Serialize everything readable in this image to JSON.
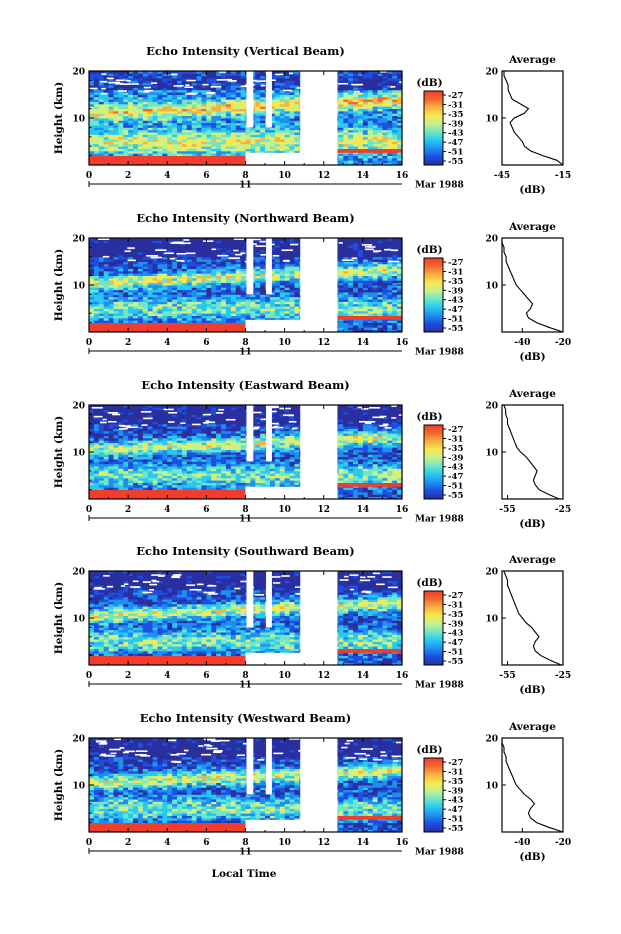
{
  "figure": {
    "xlabel": "Local Time",
    "day_label": "11",
    "month_label": "Mar 1988",
    "colorbar_unit": "(dB)",
    "colors": {
      "gradient": [
        "#2a2f9e",
        "#1c4fe0",
        "#1e8ef0",
        "#28c8f0",
        "#6fe6c8",
        "#c8f08c",
        "#f6e850",
        "#f8b040",
        "#f06a30",
        "#f23c2c"
      ],
      "low_echo": "#2a2f9e",
      "strong_echo": "#f23c2c"
    }
  },
  "chart_data": [
    {
      "type": "heatmap",
      "title": "Echo Intensity (Vertical Beam)",
      "ylabel": "Height (km)",
      "xlim": [
        0,
        16
      ],
      "ylim": [
        0,
        20
      ],
      "xticks": [
        "0",
        "2",
        "4",
        "6",
        "8",
        "10",
        "12",
        "14",
        "16"
      ],
      "yticks": [
        "10",
        "20"
      ],
      "colorbar_ticks": [
        "-27",
        "-31",
        "-35",
        "-39",
        "-43",
        "-47",
        "-51",
        "-55"
      ],
      "no_data_intervals_hours": [
        [
          12.3,
          12.6
        ],
        [
          8.2,
          8.5
        ]
      ],
      "avg_profile": {
        "title": "Average",
        "xlabel": "(dB)",
        "xticks": [
          "-45",
          "-15"
        ],
        "xlim": [
          -45,
          -15
        ],
        "yticks": [
          "10",
          "20"
        ],
        "height_km": [
          0,
          1,
          2,
          3,
          4,
          5,
          6,
          7,
          8,
          9,
          10,
          11,
          12,
          13,
          14,
          15,
          16,
          17,
          18,
          19,
          20
        ],
        "db": [
          -15,
          -18,
          -25,
          -31,
          -34,
          -35,
          -37,
          -39,
          -40,
          -41,
          -39,
          -34,
          -32,
          -36,
          -40,
          -41,
          -42,
          -42,
          -43,
          -44,
          -44
        ]
      }
    },
    {
      "type": "heatmap",
      "title": "Echo Intensity (Northward Beam)",
      "ylabel": "Height (km)",
      "xlim": [
        0,
        16
      ],
      "ylim": [
        0,
        20
      ],
      "xticks": [
        "0",
        "2",
        "4",
        "6",
        "8",
        "10",
        "12",
        "14",
        "16"
      ],
      "yticks": [
        "10",
        "20"
      ],
      "colorbar_ticks": [
        "-27",
        "-31",
        "-35",
        "-39",
        "-43",
        "-47",
        "-51",
        "-55"
      ],
      "avg_profile": {
        "title": "Average",
        "xlabel": "(dB)",
        "xticks": [
          "-40",
          "-20"
        ],
        "xlim": [
          -50,
          -20
        ],
        "yticks": [
          "10",
          "20"
        ],
        "height_km": [
          0,
          1,
          2,
          3,
          4,
          5,
          6,
          7,
          8,
          9,
          10,
          11,
          12,
          13,
          14,
          15,
          16,
          17,
          18,
          19,
          20
        ],
        "db": [
          -20,
          -27,
          -33,
          -37,
          -38,
          -36,
          -35,
          -37,
          -39,
          -41,
          -43,
          -44,
          -45,
          -46,
          -47,
          -48,
          -48,
          -49,
          -49,
          -50,
          -50
        ]
      }
    },
    {
      "type": "heatmap",
      "title": "Echo Intensity (Eastward Beam)",
      "ylabel": "Height (km)",
      "xlim": [
        0,
        16
      ],
      "ylim": [
        0,
        20
      ],
      "xticks": [
        "0",
        "2",
        "4",
        "6",
        "8",
        "10",
        "12",
        "14",
        "16"
      ],
      "yticks": [
        "10",
        "20"
      ],
      "colorbar_ticks": [
        "-27",
        "-31",
        "-35",
        "-39",
        "-43",
        "-47",
        "-51",
        "-55"
      ],
      "avg_profile": {
        "title": "Average",
        "xlabel": "(dB)",
        "xticks": [
          "-55",
          "-25"
        ],
        "xlim": [
          -58,
          -25
        ],
        "yticks": [
          "10",
          "20"
        ],
        "height_km": [
          0,
          1,
          2,
          3,
          4,
          5,
          6,
          7,
          8,
          9,
          10,
          11,
          12,
          13,
          14,
          15,
          16,
          17,
          18,
          19,
          20
        ],
        "db": [
          -27,
          -33,
          -38,
          -40,
          -41,
          -40,
          -39,
          -41,
          -43,
          -45,
          -48,
          -50,
          -51,
          -52,
          -53,
          -54,
          -55,
          -55,
          -56,
          -56,
          -57
        ]
      }
    },
    {
      "type": "heatmap",
      "title": "Echo Intensity (Southward Beam)",
      "ylabel": "Height (km)",
      "xlim": [
        0,
        16
      ],
      "ylim": [
        0,
        20
      ],
      "xticks": [
        "0",
        "2",
        "4",
        "6",
        "8",
        "10",
        "12",
        "14",
        "16"
      ],
      "yticks": [
        "10",
        "20"
      ],
      "colorbar_ticks": [
        "-27",
        "-31",
        "-35",
        "-39",
        "-43",
        "-47",
        "-51",
        "-55"
      ],
      "avg_profile": {
        "title": "Average",
        "xlabel": "(dB)",
        "xticks": [
          "-55",
          "-25"
        ],
        "xlim": [
          -58,
          -25
        ],
        "yticks": [
          "10",
          "20"
        ],
        "height_km": [
          0,
          1,
          2,
          3,
          4,
          5,
          6,
          7,
          8,
          9,
          10,
          11,
          12,
          13,
          14,
          15,
          16,
          17,
          18,
          19,
          20
        ],
        "db": [
          -26,
          -32,
          -37,
          -40,
          -41,
          -40,
          -38,
          -40,
          -42,
          -45,
          -47,
          -49,
          -50,
          -51,
          -52,
          -53,
          -54,
          -55,
          -55,
          -56,
          -57
        ]
      }
    },
    {
      "type": "heatmap",
      "title": "Echo Intensity (Westward Beam)",
      "ylabel": "Height (km)",
      "xlim": [
        0,
        16
      ],
      "ylim": [
        0,
        20
      ],
      "xticks": [
        "0",
        "2",
        "4",
        "6",
        "8",
        "10",
        "12",
        "14",
        "16"
      ],
      "yticks": [
        "10",
        "20"
      ],
      "colorbar_ticks": [
        "-27",
        "-31",
        "-35",
        "-39",
        "-43",
        "-47",
        "-51",
        "-55"
      ],
      "avg_profile": {
        "title": "Average",
        "xlabel": "(dB)",
        "xticks": [
          "-40",
          "-20"
        ],
        "xlim": [
          -50,
          -20
        ],
        "yticks": [
          "10",
          "20"
        ],
        "height_km": [
          0,
          1,
          2,
          3,
          4,
          5,
          6,
          7,
          8,
          9,
          10,
          11,
          12,
          13,
          14,
          15,
          16,
          17,
          18,
          19,
          20
        ],
        "db": [
          -20,
          -27,
          -33,
          -36,
          -37,
          -36,
          -34,
          -36,
          -39,
          -41,
          -43,
          -44,
          -45,
          -46,
          -47,
          -48,
          -48,
          -49,
          -49,
          -50,
          -50
        ]
      }
    }
  ]
}
